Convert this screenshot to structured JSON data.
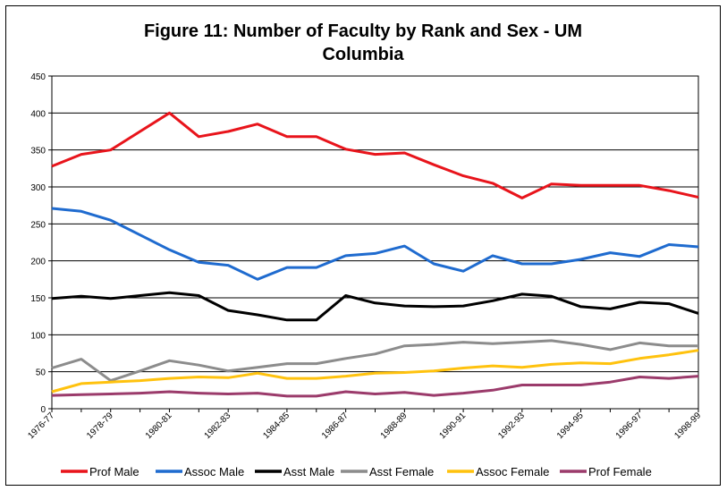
{
  "chart_data": {
    "type": "line",
    "title": "Figure 11: Number of Faculty by Rank and Sex - UM",
    "subtitle": "Columbia",
    "xlabel": "",
    "ylabel": "",
    "ylim": [
      0,
      450
    ],
    "y_ticks": [
      "0",
      "50",
      "100",
      "150",
      "200",
      "250",
      "300",
      "350",
      "400",
      "450"
    ],
    "grid": "horizontal",
    "legend_placement": "bottom",
    "x_tick_labels": [
      "1976-77",
      "1978-79",
      "1980-81",
      "1982-83",
      "1984-85",
      "1986-87",
      "1988-89",
      "1990-91",
      "1992-93",
      "1994-95",
      "1996-97",
      "1998-99"
    ],
    "x": [
      "1976-77",
      "1977-78",
      "1978-79",
      "1979-80",
      "1980-81",
      "1981-82",
      "1982-83",
      "1983-84",
      "1984-85",
      "1985-86",
      "1986-87",
      "1987-88",
      "1988-89",
      "1989-90",
      "1990-91",
      "1991-92",
      "1992-93",
      "1993-94",
      "1994-95",
      "1995-96",
      "1996-97",
      "1997-98",
      "1998-99"
    ],
    "series": [
      {
        "name": "Prof Male",
        "color": "#e8141b",
        "values": [
          328,
          344,
          350,
          375,
          400,
          368,
          375,
          385,
          368,
          368,
          351,
          344,
          346,
          330,
          315,
          305,
          285,
          304,
          302,
          302,
          302,
          295,
          286
        ]
      },
      {
        "name": "Assoc Male",
        "color": "#1f6bcf",
        "values": [
          271,
          267,
          255,
          235,
          215,
          198,
          194,
          175,
          191,
          191,
          207,
          210,
          220,
          196,
          186,
          207,
          196,
          196,
          202,
          211,
          206,
          222,
          219
        ]
      },
      {
        "name": "Asst Male",
        "color": "#000000",
        "values": [
          149,
          152,
          149,
          153,
          157,
          153,
          133,
          127,
          120,
          120,
          153,
          143,
          139,
          138,
          139,
          146,
          155,
          152,
          138,
          135,
          144,
          142,
          129
        ]
      },
      {
        "name": "Asst Female",
        "color": "#8c8c8c",
        "values": [
          55,
          67,
          38,
          51,
          65,
          59,
          51,
          56,
          61,
          61,
          68,
          74,
          85,
          87,
          90,
          88,
          90,
          92,
          87,
          80,
          89,
          85,
          85
        ]
      },
      {
        "name": "Assoc Female",
        "color": "#ffc20e",
        "values": [
          23,
          34,
          36,
          38,
          41,
          43,
          42,
          48,
          41,
          41,
          44,
          48,
          49,
          51,
          55,
          58,
          56,
          60,
          62,
          61,
          68,
          73,
          79
        ]
      },
      {
        "name": "Prof Female",
        "color": "#9b3b6b",
        "values": [
          18,
          19,
          20,
          21,
          23,
          21,
          20,
          21,
          17,
          17,
          23,
          20,
          22,
          18,
          21,
          25,
          32,
          32,
          32,
          36,
          43,
          41,
          44
        ]
      }
    ]
  }
}
